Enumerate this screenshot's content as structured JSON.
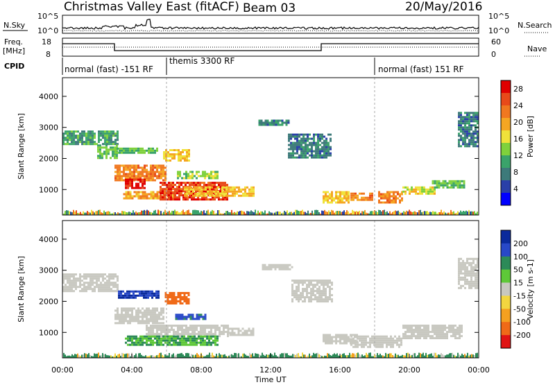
{
  "header": {
    "title": "Christmas Valley East (fitACF)",
    "beam": "Beam 03",
    "date": "20/May/2016"
  },
  "time_panel": {
    "nsky_label": "N.Sky",
    "nsky_ticks": [
      "10^5",
      "10^0"
    ],
    "nsearch_label": "N.Search",
    "nsearch_ticks": [
      "10^5",
      "10^0"
    ],
    "freq_label_line1": "Freq.",
    "freq_label_line2": "[MHz]",
    "freq_ticks": [
      "18",
      "8"
    ],
    "nave_label": "Nave",
    "nave_ticks": [
      "60",
      "0"
    ],
    "cpid_label": "CPID",
    "modes": [
      {
        "label": "normal (fast) -151 RF",
        "start": 0.0,
        "end": 6.0
      },
      {
        "label": "themis 3300 RF",
        "start": 6.0,
        "end": 18.0
      },
      {
        "label": "normal (fast) 151 RF",
        "start": 18.0,
        "end": 24.0
      }
    ]
  },
  "colors": {
    "power": [
      "#0000ff",
      "#2a40a8",
      "#3d7a7a",
      "#3aa36a",
      "#7fd13c",
      "#f0e23a",
      "#f5a623",
      "#f07820",
      "#e84a1a",
      "#e00000"
    ],
    "velocity": [
      "#0a2a9c",
      "#2848c8",
      "#2c8a58",
      "#5ec838",
      "#c8c8c0",
      "#f2d640",
      "#f5a020",
      "#f06a18",
      "#e01414"
    ],
    "ground_scatter": "#c8c8c0"
  },
  "x_axis": {
    "label": "Time UT",
    "ticks": [
      "00:00",
      "04:00",
      "08:00",
      "12:00",
      "16:00",
      "20:00",
      "00:00"
    ]
  },
  "chart_data": [
    {
      "type": "heatmap",
      "panel": "power",
      "ylabel": "Slant Range [km]",
      "xlim": [
        0,
        24
      ],
      "ylim": [
        180,
        4600
      ],
      "yticks": [
        1000,
        2000,
        3000,
        4000
      ],
      "colorbar_label": "Power [dB]",
      "colorbar_ticks": [
        "4",
        "8",
        "12",
        "16",
        "20",
        "24",
        "28"
      ],
      "colorbar_range": [
        0,
        30
      ],
      "regions": [
        {
          "t0": 0.0,
          "t1": 3.2,
          "r0": 2450,
          "r1": 2900,
          "value": 10
        },
        {
          "t0": 2.0,
          "t1": 3.2,
          "r0": 2000,
          "r1": 2450,
          "value": 12
        },
        {
          "t0": 3.0,
          "t1": 6.0,
          "r0": 1300,
          "r1": 1800,
          "value": 22
        },
        {
          "t0": 3.6,
          "t1": 4.8,
          "r0": 1050,
          "r1": 1350,
          "value": 28
        },
        {
          "t0": 3.5,
          "t1": 6.5,
          "r0": 700,
          "r1": 950,
          "value": 20
        },
        {
          "t0": 5.6,
          "t1": 9.5,
          "r0": 650,
          "r1": 1250,
          "value": 26
        },
        {
          "t0": 7.0,
          "t1": 11.0,
          "r0": 800,
          "r1": 1100,
          "value": 18
        },
        {
          "t0": 6.6,
          "t1": 9.0,
          "r0": 1350,
          "r1": 1600,
          "value": 14
        },
        {
          "t0": 5.8,
          "t1": 7.3,
          "r0": 1900,
          "r1": 2300,
          "value": 18
        },
        {
          "t0": 3.0,
          "t1": 5.5,
          "r0": 2150,
          "r1": 2350,
          "value": 12
        },
        {
          "t0": 11.3,
          "t1": 13.1,
          "r0": 3050,
          "r1": 3250,
          "value": 8
        },
        {
          "t0": 13.0,
          "t1": 15.5,
          "r0": 2000,
          "r1": 2800,
          "value": 8
        },
        {
          "t0": 15.0,
          "t1": 16.5,
          "r0": 550,
          "r1": 950,
          "value": 18
        },
        {
          "t0": 16.6,
          "t1": 17.9,
          "r0": 650,
          "r1": 900,
          "value": 22
        },
        {
          "t0": 18.2,
          "t1": 19.6,
          "r0": 550,
          "r1": 950,
          "value": 22
        },
        {
          "t0": 19.6,
          "t1": 21.5,
          "r0": 850,
          "r1": 1100,
          "value": 16
        },
        {
          "t0": 21.3,
          "t1": 23.2,
          "r0": 1050,
          "r1": 1300,
          "value": 12
        },
        {
          "t0": 22.8,
          "t1": 24.0,
          "r0": 2400,
          "r1": 3500,
          "value": 8
        }
      ],
      "near_range_band": {
        "r0": 180,
        "r1": 350
      }
    },
    {
      "type": "heatmap",
      "panel": "velocity",
      "ylabel": "Slant Range [km]",
      "xlim": [
        0,
        24
      ],
      "ylim": [
        180,
        4600
      ],
      "yticks": [
        1000,
        2000,
        3000,
        4000
      ],
      "colorbar_label": "Velocity [m s-1]",
      "colorbar_ticks": [
        "200",
        "100",
        "50",
        "15",
        "-15",
        "-50",
        "-100",
        "-200"
      ],
      "regions": [
        {
          "t0": 0.0,
          "t1": 3.2,
          "r0": 2300,
          "r1": 2900,
          "value": 0
        },
        {
          "t0": 3.0,
          "t1": 5.8,
          "r0": 1300,
          "r1": 1800,
          "value": 0
        },
        {
          "t0": 4.8,
          "t1": 9.5,
          "r0": 900,
          "r1": 1250,
          "value": 0
        },
        {
          "t0": 9.5,
          "t1": 11.0,
          "r0": 900,
          "r1": 1150,
          "value": 0
        },
        {
          "t0": 3.6,
          "t1": 9.0,
          "r0": 600,
          "r1": 900,
          "value": 30
        },
        {
          "t0": 3.2,
          "t1": 5.5,
          "r0": 2100,
          "r1": 2350,
          "value": 150
        },
        {
          "t0": 5.9,
          "t1": 7.3,
          "r0": 1900,
          "r1": 2300,
          "value": -120
        },
        {
          "t0": 6.5,
          "t1": 8.2,
          "r0": 1400,
          "r1": 1600,
          "value": 80
        },
        {
          "t0": 11.5,
          "t1": 13.2,
          "r0": 3000,
          "r1": 3200,
          "value": 0
        },
        {
          "t0": 13.2,
          "t1": 15.5,
          "r0": 2000,
          "r1": 2700,
          "value": 0
        },
        {
          "t0": 15.0,
          "t1": 17.0,
          "r0": 650,
          "r1": 950,
          "value": 0
        },
        {
          "t0": 16.6,
          "t1": 19.6,
          "r0": 550,
          "r1": 900,
          "value": 0
        },
        {
          "t0": 19.6,
          "t1": 23.0,
          "r0": 800,
          "r1": 1250,
          "value": 0
        },
        {
          "t0": 22.8,
          "t1": 24.0,
          "r0": 2400,
          "r1": 3400,
          "value": 0
        }
      ],
      "near_range_band": {
        "r0": 180,
        "r1": 350
      }
    }
  ]
}
